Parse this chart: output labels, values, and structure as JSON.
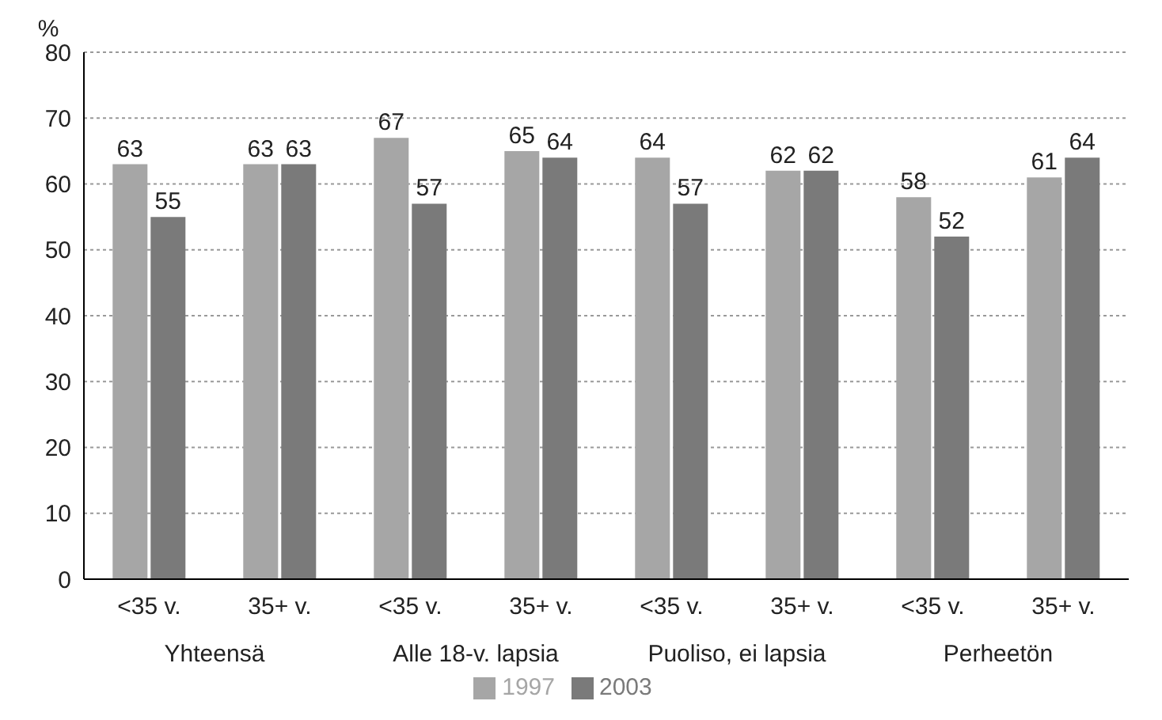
{
  "chart_data": {
    "type": "bar",
    "ylabel": "%",
    "categories": [
      "<35 v.",
      "35+ v.",
      "<35 v.",
      "35+ v.",
      "<35 v.",
      "35+ v.",
      "<35 v.",
      "35+ v."
    ],
    "series": [
      {
        "name": "1997",
        "color": "#a6a6a6",
        "values": [
          63,
          63,
          67,
          65,
          64,
          62,
          58,
          61
        ]
      },
      {
        "name": "2003",
        "color": "#7a7a7a",
        "values": [
          55,
          63,
          57,
          64,
          57,
          62,
          52,
          64
        ]
      }
    ],
    "annotations": [
      "Yhteensä",
      "Alle 18-v. lapsia",
      "Puoliso, ei lapsia",
      "Perheetön"
    ],
    "ylim": [
      0,
      80
    ],
    "yticks": [
      0,
      10,
      20,
      30,
      40,
      50,
      60,
      70,
      80
    ],
    "grid": "y",
    "legend": "bottom",
    "data_labels": true
  }
}
